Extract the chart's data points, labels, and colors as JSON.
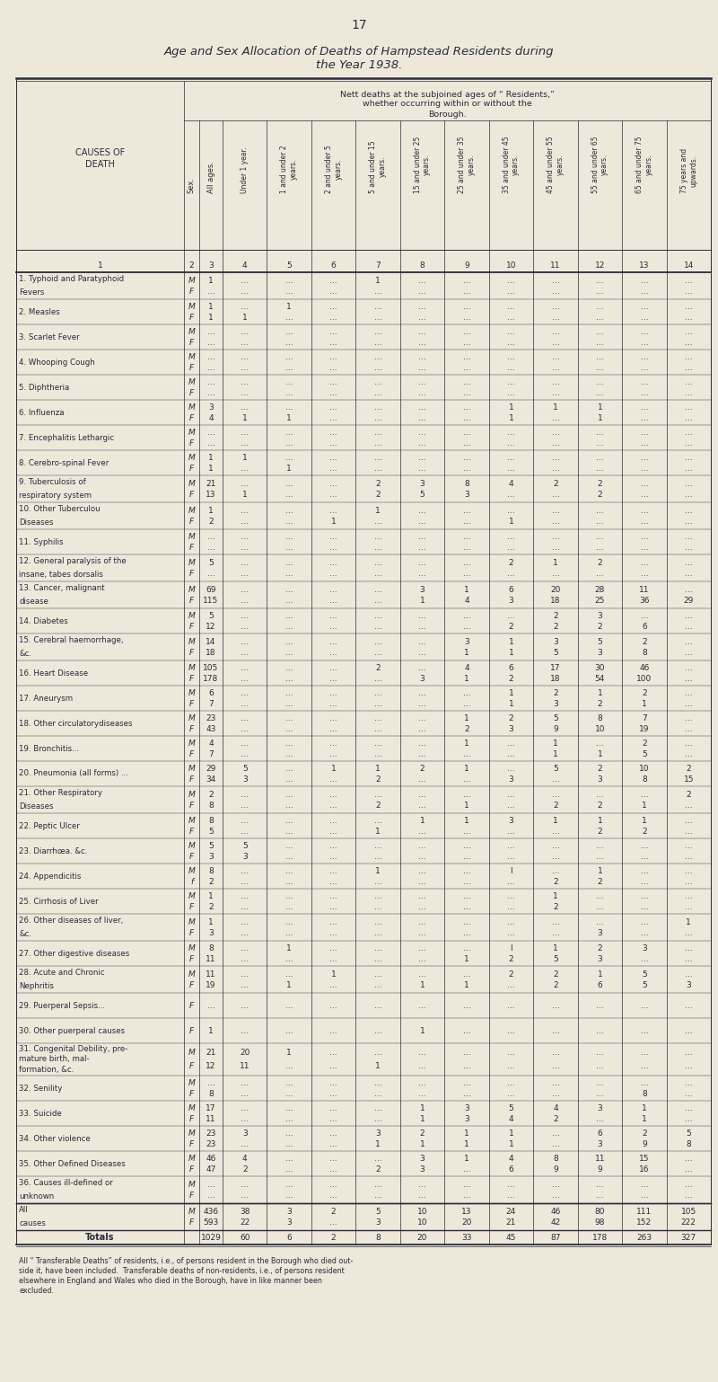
{
  "page_number": "17",
  "title_line1": "Age and Sex Allocation of Deaths of Hampstead Residents during",
  "title_line2": "the Year 1938.",
  "background_color": "#ede8da",
  "col_headers": [
    "Under 1 year.",
    "1 and under 2\nyears.",
    "2 and under 5\nyears.",
    "5 and under 15\nyears.",
    "15 and under 25\nyears.",
    "25 and under 35\nyears.",
    "35 and under 45\nyears.",
    "45 and under 55\nyears.",
    "55 and under 65\nyears.",
    "65 and under 75\nyears.",
    "75 years and\nupwards."
  ],
  "rows": [
    {
      "cause": "1. Typhoid and Paratyphoid\n   Fevers",
      "sex_m": "M",
      "sex_f": "F",
      "M": [
        "1",
        "...",
        "...",
        "...",
        "1",
        "...",
        "...",
        "...",
        "...",
        "...",
        "...",
        "..."
      ],
      "F": [
        "...",
        "...",
        "...",
        "...",
        "...",
        "...",
        "...",
        "...",
        "...",
        "...",
        "...",
        "..."
      ]
    },
    {
      "cause": "2. Measles",
      "sex_m": "M",
      "sex_f": "F",
      "M": [
        "1",
        "...",
        "1",
        "...",
        "...",
        "...",
        "...",
        "...",
        "...",
        "...",
        "...",
        "..."
      ],
      "F": [
        "1",
        "1",
        "...",
        "...",
        "...",
        "...",
        "...",
        "...",
        "...",
        "...",
        "...",
        "..."
      ]
    },
    {
      "cause": "3. Scarlet Fever",
      "sex_m": "M",
      "sex_f": "F",
      "M": [
        "...",
        "...",
        "...",
        "...",
        "...",
        "...",
        "...",
        "...",
        "...",
        "...",
        "...",
        "..."
      ],
      "F": [
        "...",
        "...",
        "...",
        "...",
        "...",
        "...",
        "...",
        "...",
        "...",
        "...",
        "...",
        "..."
      ]
    },
    {
      "cause": "4. Whooping Cough",
      "sex_m": "M",
      "sex_f": "F",
      "M": [
        "...",
        "...",
        "...",
        "...",
        "...",
        "...",
        "...",
        "...",
        "...",
        "...",
        "...",
        "..."
      ],
      "F": [
        "...",
        "...",
        "...",
        "...",
        "...",
        "...",
        "...",
        "...",
        "...",
        "...",
        "...",
        "..."
      ]
    },
    {
      "cause": "5. Diphtheria",
      "sex_m": "M",
      "sex_f": "F",
      "M": [
        "...",
        "...",
        "...",
        "...",
        "...",
        "...",
        "...",
        "...",
        "...",
        "...",
        "...",
        "..."
      ],
      "F": [
        "...",
        "...",
        "...",
        "...",
        "...",
        "...",
        "...",
        "...",
        "...",
        "...",
        "...",
        "..."
      ]
    },
    {
      "cause": "6. Influenza",
      "sex_m": "M",
      "sex_f": "F",
      "M": [
        "3",
        "...",
        "...",
        "...",
        "...",
        "...",
        "...",
        "1",
        "1",
        "1",
        "...",
        "..."
      ],
      "F": [
        "4",
        "1",
        "1",
        "...",
        "...",
        "...",
        "...",
        "1",
        "...",
        "1",
        "...",
        "..."
      ]
    },
    {
      "cause": "7. Encephalitis Lethargic",
      "sex_m": "M",
      "sex_f": "F",
      "M": [
        "...",
        "...",
        "...",
        "...",
        "...",
        "...",
        "...",
        "...",
        "...",
        "...",
        "...",
        "..."
      ],
      "F": [
        "...",
        "...",
        "...",
        "...",
        "...",
        "...",
        "...",
        "...",
        "...",
        "...",
        "...",
        "..."
      ]
    },
    {
      "cause": "8. Cerebro-spinal Fever",
      "sex_m": "M",
      "sex_f": "F",
      "M": [
        "1",
        "1",
        "...",
        "...",
        "...",
        "...",
        "...",
        "...",
        "...",
        "...",
        "...",
        "..."
      ],
      "F": [
        "1",
        "...",
        "1",
        "...",
        "...",
        "...",
        "...",
        "...",
        "...",
        "...",
        "...",
        "..."
      ]
    },
    {
      "cause": "9. Tuberculosis of\n   respiratory system",
      "sex_m": "M",
      "sex_f": "F",
      "M": [
        "21",
        "...",
        "...",
        "...",
        "2",
        "3",
        "8",
        "4",
        "2",
        "2",
        "...",
        "..."
      ],
      "F": [
        "13",
        "1",
        "...",
        "...",
        "2",
        "5",
        "3",
        "...",
        "...",
        "2",
        "...",
        "..."
      ]
    },
    {
      "cause": "10. Other Tuberculou\n    Diseases",
      "sex_m": "M",
      "sex_f": "F",
      "M": [
        "1",
        "...",
        "...",
        "...",
        "1",
        "...",
        "...",
        "...",
        "...",
        "...",
        "...",
        "..."
      ],
      "F": [
        "2",
        "...",
        "...",
        "1",
        "...",
        "...",
        "...",
        "1",
        "...",
        "...",
        "...",
        "..."
      ]
    },
    {
      "cause": "11. Syphilis",
      "sex_m": "M",
      "sex_f": "F",
      "M": [
        "...",
        "...",
        "...",
        "...",
        "...",
        "...",
        "...",
        "...",
        "...",
        "...",
        "...",
        "..."
      ],
      "F": [
        "...",
        "...",
        "...",
        "...",
        "...",
        "...",
        "...",
        "...",
        "...",
        "...",
        "...",
        "..."
      ]
    },
    {
      "cause": "12. General paralysis of the\n    insane, tabes dorsalis",
      "sex_m": "M",
      "sex_f": "F",
      "M": [
        "5",
        "...",
        "...",
        "...",
        "...",
        "...",
        "...",
        "2",
        "1",
        "2",
        "...",
        "..."
      ],
      "F": [
        "...",
        "...",
        "...",
        "...",
        "...",
        "...",
        "...",
        "...",
        "...",
        "...",
        "...",
        "..."
      ]
    },
    {
      "cause": "13. Cancer, malignant\n    disease",
      "sex_m": "M",
      "sex_f": "F",
      "M": [
        "69",
        "...",
        "...",
        "...",
        "...",
        "3",
        "1",
        "6",
        "20",
        "28",
        "11",
        "..."
      ],
      "F": [
        "115",
        "...",
        "...",
        "...",
        "...",
        "1",
        "4",
        "3",
        "18",
        "25",
        "36",
        "29"
      ]
    },
    {
      "cause": "14. Diabetes",
      "sex_m": "M",
      "sex_f": "F",
      "M": [
        "5",
        "...",
        "...",
        "...",
        "...",
        "...",
        "...",
        "...",
        "2",
        "3",
        "...",
        "..."
      ],
      "F": [
        "12",
        "...",
        "...",
        "...",
        "...",
        "...",
        "...",
        "2",
        "2",
        "2",
        "6",
        "..."
      ]
    },
    {
      "cause": "15. Cerebral haemorrhage,\n    &c.",
      "sex_m": "M",
      "sex_f": "F",
      "M": [
        "14",
        "...",
        "...",
        "...",
        "...",
        "...",
        "3",
        "1",
        "3",
        "5",
        "2",
        "..."
      ],
      "F": [
        "18",
        "...",
        "...",
        "...",
        "...",
        "...",
        "1",
        "1",
        "5",
        "3",
        "8",
        "..."
      ]
    },
    {
      "cause": "16. Heart Disease",
      "sex_m": "M",
      "sex_f": "F",
      "M": [
        "105",
        "...",
        "...",
        "...",
        "2",
        "...",
        "4",
        "6",
        "17",
        "30",
        "46",
        "..."
      ],
      "F": [
        "178",
        "...",
        "...",
        "...",
        "...",
        "3",
        "1",
        "2",
        "18",
        "54",
        "100",
        "..."
      ]
    },
    {
      "cause": "17. Aneurysm",
      "sex_m": "M",
      "sex_f": "F",
      "M": [
        "6",
        "...",
        "...",
        "...",
        "...",
        "...",
        "...",
        "1",
        "2",
        "1",
        "2",
        "..."
      ],
      "F": [
        "7",
        "...",
        "...",
        "...",
        "...",
        "...",
        "...",
        "1",
        "3",
        "2",
        "1",
        "..."
      ]
    },
    {
      "cause": "18. Other circulatorydiseases",
      "sex_m": "M",
      "sex_f": "F",
      "M": [
        "23",
        "...",
        "...",
        "...",
        "...",
        "...",
        "1",
        "2",
        "5",
        "8",
        "7",
        "..."
      ],
      "F": [
        "43",
        "...",
        "...",
        "...",
        "...",
        "...",
        "2",
        "3",
        "9",
        "10",
        "19",
        "..."
      ]
    },
    {
      "cause": "19. Bronchitis...",
      "sex_m": "M",
      "sex_f": "F",
      "M": [
        "4",
        "...",
        "...",
        "...",
        "...",
        "...",
        "1",
        "...",
        "1",
        "...",
        "2",
        "..."
      ],
      "F": [
        "7",
        "...",
        "...",
        "...",
        "...",
        "...",
        "...",
        "...",
        "1",
        "1",
        "5",
        "..."
      ]
    },
    {
      "cause": "20. Pneumonia (all forms) ...",
      "sex_m": "M",
      "sex_f": "F",
      "M": [
        "29",
        "5",
        "...",
        "1",
        "1",
        "2",
        "1",
        "...",
        "5",
        "2",
        "10",
        "2"
      ],
      "F": [
        "34",
        "3",
        "...",
        "...",
        "2",
        "...",
        "...",
        "3",
        "...",
        "3",
        "8",
        "15"
      ]
    },
    {
      "cause": "21. Other Respiratory\n    Diseases",
      "sex_m": "M",
      "sex_f": "F",
      "M": [
        "2",
        "...",
        "...",
        "...",
        "...",
        "...",
        "...",
        "...",
        "...",
        "...",
        "...",
        "2"
      ],
      "F": [
        "8",
        "...",
        "...",
        "...",
        "2",
        "...",
        "1",
        "...",
        "2",
        "2",
        "1",
        "..."
      ]
    },
    {
      "cause": "22. Peptic Ulcer",
      "sex_m": "M",
      "sex_f": "F",
      "M": [
        "8",
        "...",
        "...",
        "...",
        "...",
        "1",
        "1",
        "3",
        "1",
        "1",
        "1",
        "..."
      ],
      "F": [
        "5",
        "...",
        "...",
        "...",
        "1",
        "...",
        "...",
        "...",
        "...",
        "2",
        "2",
        "..."
      ]
    },
    {
      "cause": "23. Diarrhœa. &c.",
      "sex_m": "M",
      "sex_f": "F",
      "M": [
        "5",
        "5",
        "...",
        "...",
        "...",
        "...",
        "...",
        "...",
        "...",
        "...",
        "...",
        "..."
      ],
      "F": [
        "3",
        "3",
        "...",
        "...",
        "...",
        "...",
        "...",
        "...",
        "...",
        "...",
        "...",
        "..."
      ]
    },
    {
      "cause": "24. Appendicitis",
      "sex_m": "M",
      "sex_f": "f",
      "M": [
        "8",
        "...",
        "...",
        "...",
        "1",
        "...",
        "...",
        "l",
        "...",
        "1",
        "...",
        "..."
      ],
      "F": [
        "2",
        "...",
        "...",
        "...",
        "...",
        "...",
        "...",
        "...",
        "2",
        "2",
        "...",
        "..."
      ]
    },
    {
      "cause": "25. Cirrhosis of Liver",
      "sex_m": "M",
      "sex_f": "F",
      "M": [
        "1",
        "...",
        "...",
        "...",
        "...",
        "...",
        "...",
        "...",
        "1",
        "...",
        "...",
        "..."
      ],
      "F": [
        "2",
        "...",
        "...",
        "...",
        "...",
        "...",
        "...",
        "...",
        "2",
        "...",
        "...",
        "..."
      ]
    },
    {
      "cause": "26. Other diseases of liver,\n    &c.",
      "sex_m": "M",
      "sex_f": "F",
      "M": [
        "1",
        "...",
        "...",
        "...",
        "...",
        "...",
        "...",
        "...",
        "...",
        "...",
        "...",
        "1"
      ],
      "F": [
        "3",
        "...",
        "...",
        "...",
        "...",
        "...",
        "...",
        "...",
        "...",
        "3",
        "...",
        "..."
      ]
    },
    {
      "cause": "27. Other digestive diseases",
      "sex_m": "M",
      "sex_f": "F",
      "M": [
        "8",
        "...",
        "1",
        "...",
        "...",
        "...",
        "...",
        "l",
        "1",
        "2",
        "3",
        "..."
      ],
      "F": [
        "11",
        "...",
        "...",
        "...",
        "...",
        "...",
        "1",
        "2",
        "5",
        "3",
        "...",
        "..."
      ]
    },
    {
      "cause": "28. Acute and Chronic\n    Nephritis",
      "sex_m": "M",
      "sex_f": "F",
      "M": [
        "11",
        "...",
        "...",
        "1",
        "...",
        "...",
        "...",
        "2",
        "2",
        "1",
        "5",
        "..."
      ],
      "F": [
        "19",
        "...",
        "1",
        "...",
        "...",
        "1",
        "1",
        "...",
        "2",
        "6",
        "5",
        "3"
      ]
    },
    {
      "cause": "29. Puerperal Sepsis...",
      "sex_m": null,
      "sex_f": "F",
      "M": null,
      "F": [
        "...",
        "...",
        "...",
        "...",
        "...",
        "...",
        "...",
        "...",
        "...",
        "...",
        "...",
        "..."
      ]
    },
    {
      "cause": "30. Other puerperal causes",
      "sex_m": null,
      "sex_f": "F",
      "M": null,
      "F": [
        "1",
        "...",
        "...",
        "...",
        "...",
        "1",
        "...",
        "...",
        "...",
        "...",
        "...",
        "..."
      ]
    },
    {
      "cause": "31. Congenital Debility, pre-\n    mature birth, mal-\n    formation, &c.",
      "sex_m": "M",
      "sex_f": "F",
      "M": [
        "21",
        "20",
        "1",
        "...",
        "...",
        "...",
        "...",
        "...",
        "...",
        "...",
        "...",
        "..."
      ],
      "F": [
        "12",
        "11",
        "...",
        "...",
        "1",
        "...",
        "...",
        "...",
        "...",
        "...",
        "...",
        "..."
      ]
    },
    {
      "cause": "32. Senility",
      "sex_m": "M",
      "sex_f": "F",
      "M": [
        "...",
        "...",
        "...",
        "...",
        "...",
        "...",
        "...",
        "...",
        "...",
        "...",
        "...",
        "..."
      ],
      "F": [
        "8",
        "...",
        "...",
        "...",
        "...",
        "...",
        "...",
        "...",
        "...",
        "...",
        "8",
        "..."
      ]
    },
    {
      "cause": "33. Suicide",
      "sex_m": "M",
      "sex_f": "F",
      "M": [
        "17",
        "...",
        "...",
        "...",
        "...",
        "1",
        "3",
        "5",
        "4",
        "3",
        "1",
        "..."
      ],
      "F": [
        "11",
        "...",
        "...",
        "...",
        "...",
        "1",
        "3",
        "4",
        "2",
        "...",
        "1",
        "..."
      ]
    },
    {
      "cause": "34. Other violence",
      "sex_m": "M",
      "sex_f": "F",
      "M": [
        "23",
        "3",
        "...",
        "...",
        "3",
        "2",
        "1",
        "1",
        "...",
        "6",
        "2",
        "5"
      ],
      "F": [
        "23",
        "...",
        "...",
        "...",
        "1",
        "1",
        "1",
        "1",
        "...",
        "3",
        "9",
        "8"
      ]
    },
    {
      "cause": "35. Other Defined Diseases",
      "sex_m": "M",
      "sex_f": "F",
      "M": [
        "46",
        "4",
        "...",
        "...",
        "...",
        "3",
        "1",
        "4",
        "8",
        "11",
        "15",
        "..."
      ],
      "F": [
        "47",
        "2",
        "...",
        "...",
        "2",
        "3",
        "...",
        "6",
        "9",
        "9",
        "16",
        "..."
      ]
    },
    {
      "cause": "36. Causes ill-defined or\n    unknown",
      "sex_m": "M",
      "sex_f": "F",
      "M": [
        "...",
        "...",
        "...",
        "...",
        "...",
        "...",
        "...",
        "...",
        "...",
        "...",
        "...",
        "..."
      ],
      "F": [
        "...",
        "...",
        "...",
        "...",
        "...",
        "...",
        "...",
        "...",
        "...",
        "...",
        "...",
        "..."
      ]
    },
    {
      "cause": "All\ncauses",
      "sex_m": "M",
      "sex_f": "F",
      "is_total": true,
      "M": [
        "436",
        "38",
        "3",
        "2",
        "5",
        "10",
        "13",
        "24",
        "46",
        "80",
        "111",
        "105"
      ],
      "F": [
        "593",
        "22",
        "3",
        "...",
        "3",
        "10",
        "20",
        "21",
        "42",
        "98",
        "152",
        "222"
      ]
    },
    {
      "cause": "Totals",
      "sex_m": null,
      "sex_f": null,
      "is_grand_total": true,
      "M": [
        "1029",
        "60",
        "6",
        "2",
        "8",
        "20",
        "33",
        "45",
        "87",
        "178",
        "263",
        "327"
      ],
      "F": null
    }
  ],
  "footnote_lines": [
    "All “ Transferable Deaths” of residents, i.e., of persons resident in the Borough who died out-",
    "side it, have been included.  Transferable deaths of non-residents, i.e., of persons resident",
    "elsewhere in England and Wales who died in the Borough, have in like manner been",
    "excluded."
  ]
}
